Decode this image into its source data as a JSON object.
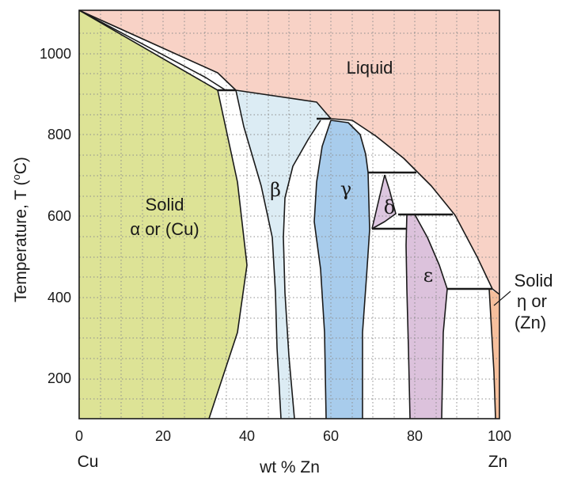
{
  "x_axis": {
    "ticks": [
      "0",
      "20",
      "40",
      "60",
      "80",
      "100"
    ],
    "title": "wt % Zn",
    "left_component": "Cu",
    "right_component": "Zn"
  },
  "y_axis": {
    "ticks": [
      "200",
      "400",
      "600",
      "800",
      "1000"
    ],
    "title": "Temperature, T  (",
    "title_unit_superscript": "o",
    "title_unit": "C)"
  },
  "phases": {
    "liquid": "Liquid",
    "alpha_line1": "Solid",
    "alpha_line2": "α or (Cu)",
    "beta": "β",
    "gamma": "γ",
    "delta": "δ",
    "epsilon": "ε",
    "eta_line1": "Solid",
    "eta_line2": "η or",
    "eta_line3": "(Zn)"
  },
  "colors": {
    "liquid": "#f8d2c6",
    "alpha": "#dde396",
    "beta": "#dcecf4",
    "gamma": "#a8ccec",
    "delta": "#ddc6e0",
    "epsilon": "#dcc2dc",
    "eta": "#f6bf9c",
    "two_phase": "#ffffff"
  }
}
